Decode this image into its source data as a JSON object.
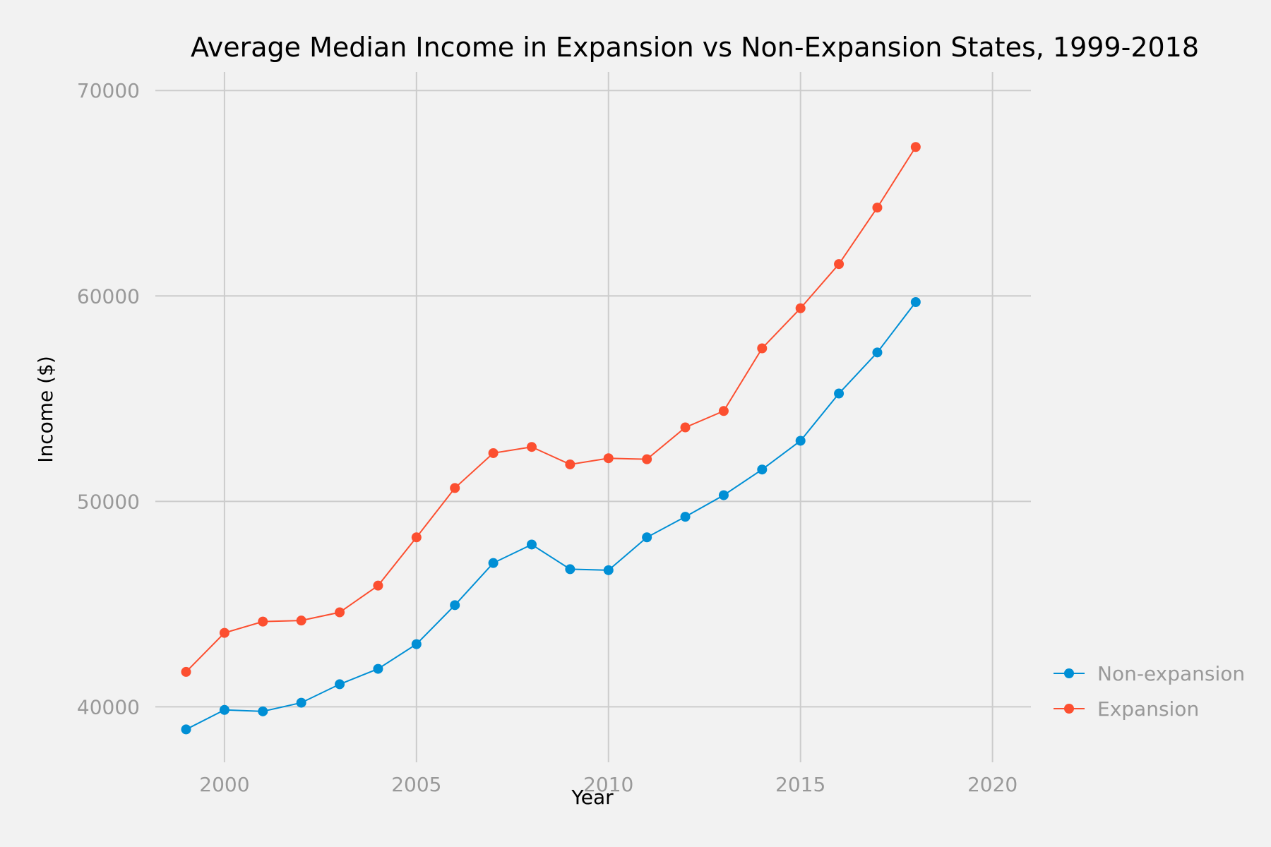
{
  "chart_data": {
    "type": "line",
    "title": "Average Median Income in Expansion vs Non-Expansion States, 1999-2018",
    "xlabel": "Year",
    "ylabel": "Income ($)",
    "xlim": [
      1998.2,
      2021.0
    ],
    "ylim": [
      37300,
      70900
    ],
    "xticks": [
      2000,
      2005,
      2010,
      2015,
      2020
    ],
    "xtick_labels": [
      "2000",
      "2005",
      "2010",
      "2015",
      "2020"
    ],
    "yticks": [
      40000,
      50000,
      60000,
      70000
    ],
    "ytick_labels": [
      "40000",
      "50000",
      "60000",
      "70000"
    ],
    "grid": true,
    "legend_position": "right",
    "x": [
      1999,
      2000,
      2001,
      2002,
      2003,
      2004,
      2005,
      2006,
      2007,
      2008,
      2009,
      2010,
      2011,
      2012,
      2013,
      2014,
      2015,
      2016,
      2017,
      2018
    ],
    "series": [
      {
        "name": "Non-expansion",
        "color": "#008fd5",
        "values": [
          38900,
          39850,
          39780,
          40200,
          41100,
          41850,
          43050,
          44950,
          47000,
          47900,
          46700,
          46650,
          48250,
          49250,
          50300,
          51550,
          52950,
          55250,
          57250,
          59700
        ]
      },
      {
        "name": "Expansion",
        "color": "#fc4f30",
        "values": [
          41700,
          43600,
          44150,
          44200,
          44600,
          45900,
          48250,
          50650,
          52350,
          52650,
          51800,
          52100,
          52050,
          53600,
          54400,
          57450,
          59400,
          61550,
          64300,
          67250
        ]
      }
    ]
  }
}
